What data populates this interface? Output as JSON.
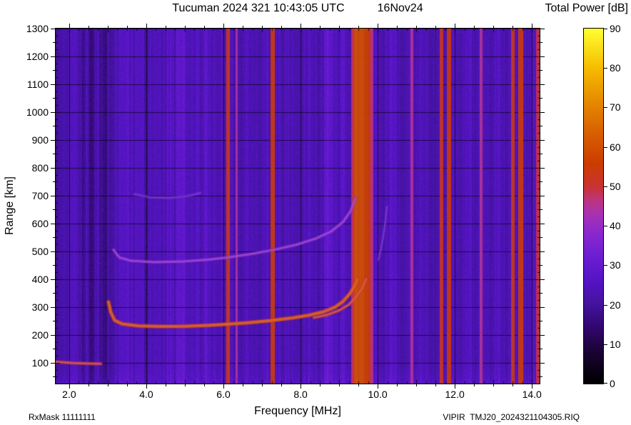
{
  "header": {
    "title": "Tucuman 2024 321 10:43:05 UTC",
    "date": "16Nov24",
    "colorbar_title": "Total Power [dB]"
  },
  "axes": {
    "xlabel": "Frequency [MHz]",
    "ylabel": "Range [km]"
  },
  "footer": {
    "rx_mask": "RxMask 11111111",
    "file_name": "VIPIR  TMJ20_2024321104305.RIQ"
  },
  "chart_data": {
    "type": "heatmap",
    "title": "Tucuman 2024 321 10:43:05 UTC  16Nov24",
    "xlabel": "Frequency [MHz]",
    "ylabel": "Range [km]",
    "colorbar_label": "Total Power [dB]",
    "xlim": [
      1.65,
      14.2
    ],
    "ylim": [
      25,
      1300
    ],
    "grid": true,
    "x_ticks": [
      {
        "v": 2,
        "label": "2.0"
      },
      {
        "v": 4,
        "label": "4.0"
      },
      {
        "v": 6,
        "label": "6.0"
      },
      {
        "v": 8,
        "label": "8.0"
      },
      {
        "v": 10,
        "label": "10.0"
      },
      {
        "v": 12,
        "label": "12.0"
      },
      {
        "v": 14,
        "label": "14.0"
      }
    ],
    "y_ticks": [
      {
        "v": 100,
        "label": "100"
      },
      {
        "v": 200,
        "label": "200"
      },
      {
        "v": 300,
        "label": "300"
      },
      {
        "v": 400,
        "label": "400"
      },
      {
        "v": 500,
        "label": "500"
      },
      {
        "v": 600,
        "label": "600"
      },
      {
        "v": 700,
        "label": "700"
      },
      {
        "v": 800,
        "label": "800"
      },
      {
        "v": 900,
        "label": "900"
      },
      {
        "v": 1000,
        "label": "1000"
      },
      {
        "v": 1100,
        "label": "1100"
      },
      {
        "v": 1200,
        "label": "1200"
      },
      {
        "v": 1300,
        "label": "1300"
      }
    ],
    "colorbar": {
      "min": 0,
      "max": 90,
      "ticks": [
        {
          "v": 0,
          "label": "0"
        },
        {
          "v": 10,
          "label": "10"
        },
        {
          "v": 20,
          "label": "20"
        },
        {
          "v": 30,
          "label": "30"
        },
        {
          "v": 40,
          "label": "40"
        },
        {
          "v": 50,
          "label": "50"
        },
        {
          "v": 60,
          "label": "60"
        },
        {
          "v": 70,
          "label": "70"
        },
        {
          "v": 80,
          "label": "80"
        },
        {
          "v": 90,
          "label": "90"
        }
      ]
    },
    "colormap_stops": [
      {
        "v": 0,
        "c": "#000000"
      },
      {
        "v": 8,
        "c": "#1a0433"
      },
      {
        "v": 14,
        "c": "#30076b"
      },
      {
        "v": 20,
        "c": "#43139d"
      },
      {
        "v": 26,
        "c": "#5514c4"
      },
      {
        "v": 32,
        "c": "#6b1dd2"
      },
      {
        "v": 38,
        "c": "#8a28d0"
      },
      {
        "v": 43,
        "c": "#a832b4"
      },
      {
        "v": 47,
        "c": "#c03578"
      },
      {
        "v": 50,
        "c": "#c93333"
      },
      {
        "v": 56,
        "c": "#cc3d00"
      },
      {
        "v": 64,
        "c": "#d96200"
      },
      {
        "v": 72,
        "c": "#e78d00"
      },
      {
        "v": 80,
        "c": "#f6bc00"
      },
      {
        "v": 90,
        "c": "#ffff33"
      }
    ],
    "background_db": 23,
    "noise_db": 2.2,
    "bands": [
      {
        "f0": 1.65,
        "f1": 1.8,
        "delta": -3
      },
      {
        "f0": 2.02,
        "f1": 2.18,
        "delta": 2.5
      },
      {
        "f0": 2.3,
        "f1": 2.42,
        "delta": -3.5
      },
      {
        "f0": 2.52,
        "f1": 2.64,
        "delta": -5
      },
      {
        "f0": 2.78,
        "f1": 2.97,
        "delta": -5.5
      },
      {
        "f0": 3.05,
        "f1": 3.12,
        "delta": -3
      },
      {
        "f0": 3.2,
        "f1": 6.05,
        "delta": 1.2
      },
      {
        "f0": 3.3,
        "f1": 3.55,
        "delta": 3
      },
      {
        "f0": 3.95,
        "f1": 4.05,
        "delta": -2.5
      },
      {
        "f0": 4.55,
        "f1": 4.65,
        "delta": 2
      },
      {
        "f0": 4.78,
        "f1": 5.0,
        "delta": 3.5
      },
      {
        "f0": 5.28,
        "f1": 5.38,
        "delta": 2
      },
      {
        "f0": 5.52,
        "f1": 5.66,
        "delta": 3
      },
      {
        "f0": 6.55,
        "f1": 6.7,
        "delta": 2
      },
      {
        "f0": 7.05,
        "f1": 7.15,
        "delta": 2
      },
      {
        "f0": 7.6,
        "f1": 7.72,
        "delta": 2.5
      },
      {
        "f0": 8.2,
        "f1": 8.32,
        "delta": 2
      },
      {
        "f0": 8.62,
        "f1": 8.82,
        "delta": 6
      },
      {
        "f0": 9.02,
        "f1": 9.18,
        "delta": 3.5
      },
      {
        "f0": 10.32,
        "f1": 10.48,
        "delta": 4
      },
      {
        "f0": 11.0,
        "f1": 11.12,
        "delta": 2
      },
      {
        "f0": 11.92,
        "f1": 12.02,
        "delta": 3
      },
      {
        "f0": 12.3,
        "f1": 12.44,
        "delta": 3
      },
      {
        "f0": 13.05,
        "f1": 13.18,
        "delta": 2.5
      },
      {
        "f0": 14.0,
        "f1": 14.1,
        "delta": 2.5
      }
    ],
    "rfi_stripes": [
      {
        "f0": 6.08,
        "f1": 6.16,
        "db": 52
      },
      {
        "f0": 6.32,
        "f1": 6.37,
        "db": 44
      },
      {
        "f0": 7.24,
        "f1": 7.33,
        "db": 55
      },
      {
        "f0": 9.33,
        "f1": 9.4,
        "db": 48
      },
      {
        "f0": 9.4,
        "f1": 9.66,
        "db": 61
      },
      {
        "f0": 9.66,
        "f1": 9.82,
        "db": 56
      },
      {
        "f0": 9.82,
        "f1": 9.88,
        "db": 47
      },
      {
        "f0": 10.86,
        "f1": 10.92,
        "db": 45
      },
      {
        "f0": 11.62,
        "f1": 11.7,
        "db": 52
      },
      {
        "f0": 11.8,
        "f1": 11.89,
        "db": 54
      },
      {
        "f0": 12.66,
        "f1": 12.71,
        "db": 44
      },
      {
        "f0": 13.46,
        "f1": 13.55,
        "db": 53
      },
      {
        "f0": 13.66,
        "f1": 13.77,
        "db": 55
      },
      {
        "f0": 14.12,
        "f1": 14.2,
        "db": 49
      }
    ],
    "traces": [
      {
        "name": "sporadic-e-trace",
        "db": 50,
        "width": 3,
        "alpha": 0.9,
        "points": [
          [
            1.65,
            103
          ],
          [
            2.1,
            99
          ],
          [
            2.5,
            97
          ],
          [
            2.82,
            96
          ]
        ]
      },
      {
        "name": "f2-o-trace",
        "db": 56,
        "width": 4,
        "alpha": 0.95,
        "points": [
          [
            3.02,
            318
          ],
          [
            3.08,
            281
          ],
          [
            3.18,
            252
          ],
          [
            3.38,
            239
          ],
          [
            3.8,
            232
          ],
          [
            4.4,
            230
          ],
          [
            5.0,
            231
          ],
          [
            5.6,
            234
          ],
          [
            6.0,
            237
          ],
          [
            6.6,
            243
          ],
          [
            7.2,
            251
          ],
          [
            7.8,
            261
          ],
          [
            8.2,
            270
          ],
          [
            8.6,
            283
          ],
          [
            8.9,
            300
          ],
          [
            9.1,
            320
          ],
          [
            9.28,
            348
          ],
          [
            9.4,
            375
          ],
          [
            9.47,
            398
          ]
        ]
      },
      {
        "name": "f2-x-trace",
        "db": 52,
        "width": 3,
        "alpha": 0.85,
        "points": [
          [
            8.35,
            262
          ],
          [
            8.7,
            272
          ],
          [
            9.0,
            288
          ],
          [
            9.25,
            308
          ],
          [
            9.45,
            338
          ],
          [
            9.6,
            368
          ],
          [
            9.7,
            400
          ]
        ]
      },
      {
        "name": "second-hop-trace",
        "db": 39,
        "width": 3,
        "alpha": 0.75,
        "points": [
          [
            3.15,
            505
          ],
          [
            3.3,
            478
          ],
          [
            3.6,
            466
          ],
          [
            4.2,
            461
          ],
          [
            5.0,
            464
          ],
          [
            5.6,
            470
          ],
          [
            6.1,
            478
          ],
          [
            6.7,
            490
          ],
          [
            7.3,
            505
          ],
          [
            7.9,
            524
          ],
          [
            8.4,
            546
          ],
          [
            8.8,
            572
          ],
          [
            9.1,
            605
          ],
          [
            9.3,
            645
          ],
          [
            9.42,
            690
          ]
        ]
      },
      {
        "name": "third-hop-trace",
        "db": 33,
        "width": 3,
        "alpha": 0.5,
        "points": [
          [
            3.7,
            705
          ],
          [
            4.1,
            694
          ],
          [
            4.6,
            692
          ],
          [
            5.1,
            699
          ],
          [
            5.4,
            710
          ]
        ]
      },
      {
        "name": "x-mode-tail-trace",
        "db": 35,
        "width": 2,
        "alpha": 0.6,
        "points": [
          [
            10.02,
            470
          ],
          [
            10.08,
            505
          ],
          [
            10.14,
            550
          ],
          [
            10.2,
            608
          ],
          [
            10.24,
            660
          ]
        ]
      }
    ]
  }
}
